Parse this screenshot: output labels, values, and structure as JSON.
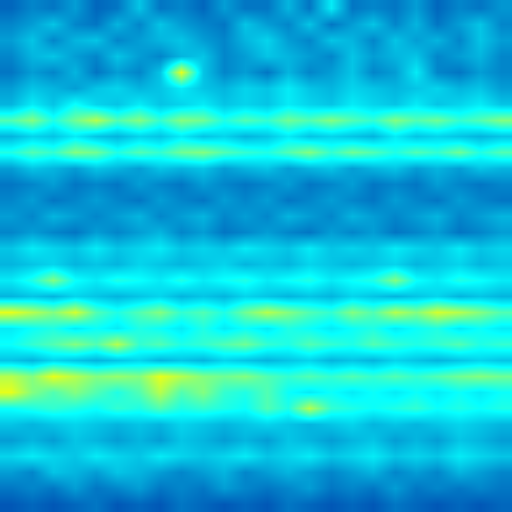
{
  "chart_data": {
    "type": "heatmap",
    "tick_labels": false,
    "xlim": [
      -0.5,
      23.5
    ],
    "ylim": [
      31.5,
      -0.5
    ],
    "zlim": [
      0,
      1
    ],
    "z": [
      [
        0.18,
        0.22,
        0.2,
        0.25,
        0.18,
        0.2,
        0.3,
        0.2,
        0.22,
        0.18,
        0.25,
        0.2,
        0.2,
        0.28,
        0.2,
        0.35,
        0.2,
        0.22,
        0.2,
        0.25,
        0.18,
        0.22,
        0.2,
        0.24
      ],
      [
        0.22,
        0.25,
        0.3,
        0.22,
        0.2,
        0.28,
        0.22,
        0.3,
        0.25,
        0.22,
        0.2,
        0.3,
        0.25,
        0.22,
        0.3,
        0.2,
        0.25,
        0.3,
        0.22,
        0.28,
        0.2,
        0.25,
        0.3,
        0.22
      ],
      [
        0.25,
        0.3,
        0.22,
        0.28,
        0.3,
        0.22,
        0.25,
        0.28,
        0.3,
        0.25,
        0.22,
        0.28,
        0.32,
        0.25,
        0.22,
        0.3,
        0.28,
        0.22,
        0.3,
        0.25,
        0.28,
        0.22,
        0.3,
        0.25
      ],
      [
        0.22,
        0.28,
        0.3,
        0.25,
        0.22,
        0.3,
        0.25,
        0.22,
        0.28,
        0.3,
        0.22,
        0.25,
        0.3,
        0.28,
        0.25,
        0.22,
        0.3,
        0.25,
        0.28,
        0.3,
        0.22,
        0.25,
        0.28,
        0.22
      ],
      [
        0.2,
        0.25,
        0.22,
        0.28,
        0.2,
        0.25,
        0.22,
        0.3,
        0.6,
        0.3,
        0.22,
        0.25,
        0.2,
        0.28,
        0.22,
        0.25,
        0.3,
        0.22,
        0.25,
        0.35,
        0.22,
        0.2,
        0.25,
        0.22
      ],
      [
        0.25,
        0.3,
        0.28,
        0.25,
        0.3,
        0.32,
        0.28,
        0.3,
        0.35,
        0.3,
        0.28,
        0.32,
        0.3,
        0.35,
        0.3,
        0.28,
        0.32,
        0.3,
        0.28,
        0.3,
        0.32,
        0.28,
        0.3,
        0.25
      ],
      [
        0.28,
        0.35,
        0.3,
        0.38,
        0.32,
        0.3,
        0.35,
        0.3,
        0.32,
        0.35,
        0.3,
        0.32,
        0.3,
        0.35,
        0.32,
        0.3,
        0.35,
        0.32,
        0.3,
        0.35,
        0.3,
        0.32,
        0.35,
        0.3
      ],
      [
        0.45,
        0.5,
        0.4,
        0.48,
        0.55,
        0.45,
        0.5,
        0.42,
        0.5,
        0.48,
        0.4,
        0.45,
        0.42,
        0.48,
        0.45,
        0.5,
        0.45,
        0.42,
        0.5,
        0.45,
        0.48,
        0.42,
        0.45,
        0.5
      ],
      [
        0.28,
        0.32,
        0.3,
        0.35,
        0.3,
        0.28,
        0.32,
        0.3,
        0.35,
        0.3,
        0.32,
        0.28,
        0.3,
        0.35,
        0.3,
        0.32,
        0.3,
        0.28,
        0.35,
        0.3,
        0.32,
        0.3,
        0.28,
        0.3
      ],
      [
        0.4,
        0.45,
        0.42,
        0.5,
        0.48,
        0.4,
        0.45,
        0.42,
        0.48,
        0.5,
        0.45,
        0.42,
        0.4,
        0.45,
        0.5,
        0.42,
        0.48,
        0.45,
        0.4,
        0.45,
        0.42,
        0.48,
        0.4,
        0.45
      ],
      [
        0.25,
        0.3,
        0.28,
        0.25,
        0.3,
        0.28,
        0.25,
        0.3,
        0.28,
        0.3,
        0.25,
        0.28,
        0.3,
        0.25,
        0.28,
        0.3,
        0.25,
        0.28,
        0.3,
        0.25,
        0.28,
        0.25,
        0.3,
        0.28
      ],
      [
        0.2,
        0.22,
        0.25,
        0.2,
        0.22,
        0.2,
        0.25,
        0.22,
        0.2,
        0.25,
        0.22,
        0.2,
        0.22,
        0.25,
        0.2,
        0.22,
        0.25,
        0.2,
        0.22,
        0.2,
        0.25,
        0.22,
        0.2,
        0.22
      ],
      [
        0.22,
        0.25,
        0.2,
        0.22,
        0.25,
        0.22,
        0.2,
        0.25,
        0.22,
        0.2,
        0.25,
        0.22,
        0.25,
        0.2,
        0.22,
        0.25,
        0.22,
        0.2,
        0.25,
        0.22,
        0.2,
        0.25,
        0.22,
        0.2
      ],
      [
        0.25,
        0.22,
        0.28,
        0.25,
        0.22,
        0.25,
        0.28,
        0.22,
        0.25,
        0.28,
        0.22,
        0.25,
        0.22,
        0.28,
        0.25,
        0.22,
        0.28,
        0.25,
        0.22,
        0.25,
        0.28,
        0.22,
        0.25,
        0.28
      ],
      [
        0.22,
        0.25,
        0.22,
        0.2,
        0.25,
        0.22,
        0.25,
        0.28,
        0.22,
        0.25,
        0.2,
        0.22,
        0.25,
        0.22,
        0.2,
        0.25,
        0.22,
        0.25,
        0.2,
        0.22,
        0.25,
        0.2,
        0.22,
        0.25
      ],
      [
        0.3,
        0.35,
        0.32,
        0.3,
        0.35,
        0.3,
        0.32,
        0.35,
        0.3,
        0.32,
        0.3,
        0.35,
        0.32,
        0.3,
        0.35,
        0.3,
        0.32,
        0.3,
        0.35,
        0.32,
        0.3,
        0.35,
        0.3,
        0.32
      ],
      [
        0.28,
        0.3,
        0.32,
        0.28,
        0.3,
        0.28,
        0.32,
        0.3,
        0.28,
        0.3,
        0.32,
        0.28,
        0.3,
        0.28,
        0.32,
        0.3,
        0.28,
        0.3,
        0.32,
        0.28,
        0.3,
        0.32,
        0.28,
        0.3
      ],
      [
        0.35,
        0.4,
        0.5,
        0.38,
        0.35,
        0.4,
        0.38,
        0.35,
        0.4,
        0.35,
        0.38,
        0.4,
        0.35,
        0.38,
        0.4,
        0.35,
        0.38,
        0.4,
        0.5,
        0.38,
        0.35,
        0.4,
        0.38,
        0.35
      ],
      [
        0.28,
        0.3,
        0.28,
        0.32,
        0.3,
        0.28,
        0.3,
        0.32,
        0.28,
        0.3,
        0.28,
        0.32,
        0.3,
        0.28,
        0.3,
        0.28,
        0.32,
        0.3,
        0.28,
        0.3,
        0.32,
        0.28,
        0.3,
        0.28
      ],
      [
        0.6,
        0.55,
        0.5,
        0.58,
        0.45,
        0.4,
        0.45,
        0.5,
        0.42,
        0.45,
        0.4,
        0.48,
        0.55,
        0.5,
        0.45,
        0.42,
        0.5,
        0.45,
        0.55,
        0.5,
        0.58,
        0.55,
        0.5,
        0.45
      ],
      [
        0.35,
        0.38,
        0.4,
        0.35,
        0.38,
        0.35,
        0.4,
        0.38,
        0.35,
        0.4,
        0.35,
        0.38,
        0.35,
        0.4,
        0.38,
        0.35,
        0.38,
        0.4,
        0.35,
        0.38,
        0.4,
        0.35,
        0.38,
        0.35
      ],
      [
        0.38,
        0.42,
        0.45,
        0.5,
        0.45,
        0.55,
        0.42,
        0.45,
        0.4,
        0.42,
        0.45,
        0.48,
        0.42,
        0.4,
        0.45,
        0.42,
        0.4,
        0.45,
        0.42,
        0.4,
        0.42,
        0.45,
        0.4,
        0.42
      ],
      [
        0.3,
        0.28,
        0.32,
        0.3,
        0.28,
        0.3,
        0.32,
        0.28,
        0.3,
        0.28,
        0.32,
        0.3,
        0.28,
        0.3,
        0.32,
        0.28,
        0.3,
        0.28,
        0.32,
        0.3,
        0.28,
        0.3,
        0.32,
        0.3
      ],
      [
        0.55,
        0.5,
        0.6,
        0.55,
        0.5,
        0.52,
        0.5,
        0.6,
        0.55,
        0.5,
        0.48,
        0.5,
        0.45,
        0.42,
        0.45,
        0.42,
        0.45,
        0.42,
        0.45,
        0.42,
        0.45,
        0.48,
        0.5,
        0.48
      ],
      [
        0.6,
        0.5,
        0.45,
        0.5,
        0.45,
        0.4,
        0.45,
        0.55,
        0.45,
        0.5,
        0.42,
        0.4,
        0.45,
        0.38,
        0.35,
        0.38,
        0.35,
        0.38,
        0.35,
        0.38,
        0.35,
        0.38,
        0.35,
        0.38
      ],
      [
        0.38,
        0.4,
        0.42,
        0.4,
        0.38,
        0.42,
        0.4,
        0.45,
        0.4,
        0.42,
        0.4,
        0.38,
        0.45,
        0.4,
        0.55,
        0.42,
        0.4,
        0.38,
        0.4,
        0.42,
        0.38,
        0.4,
        0.38,
        0.4
      ],
      [
        0.3,
        0.28,
        0.3,
        0.32,
        0.3,
        0.28,
        0.3,
        0.28,
        0.32,
        0.3,
        0.28,
        0.3,
        0.32,
        0.3,
        0.28,
        0.3,
        0.32,
        0.28,
        0.3,
        0.28,
        0.3,
        0.32,
        0.3,
        0.28
      ],
      [
        0.25,
        0.28,
        0.25,
        0.3,
        0.28,
        0.25,
        0.28,
        0.25,
        0.3,
        0.28,
        0.25,
        0.28,
        0.25,
        0.3,
        0.28,
        0.25,
        0.28,
        0.3,
        0.25,
        0.28,
        0.25,
        0.3,
        0.28,
        0.25
      ],
      [
        0.32,
        0.35,
        0.32,
        0.3,
        0.35,
        0.32,
        0.3,
        0.35,
        0.32,
        0.3,
        0.32,
        0.35,
        0.3,
        0.32,
        0.35,
        0.3,
        0.32,
        0.35,
        0.3,
        0.32,
        0.3,
        0.35,
        0.32,
        0.3
      ],
      [
        0.25,
        0.22,
        0.3,
        0.28,
        0.25,
        0.3,
        0.28,
        0.25,
        0.22,
        0.25,
        0.28,
        0.22,
        0.25,
        0.28,
        0.25,
        0.22,
        0.25,
        0.28,
        0.22,
        0.25,
        0.22,
        0.28,
        0.25,
        0.22
      ],
      [
        0.2,
        0.22,
        0.2,
        0.25,
        0.2,
        0.22,
        0.25,
        0.2,
        0.22,
        0.2,
        0.25,
        0.22,
        0.2,
        0.22,
        0.25,
        0.2,
        0.22,
        0.2,
        0.25,
        0.2,
        0.22,
        0.2,
        0.22,
        0.2
      ],
      [
        0.16,
        0.18,
        0.16,
        0.18,
        0.2,
        0.16,
        0.18,
        0.16,
        0.2,
        0.18,
        0.16,
        0.18,
        0.16,
        0.2,
        0.18,
        0.16,
        0.18,
        0.16,
        0.2,
        0.18,
        0.16,
        0.18,
        0.16,
        0.18
      ]
    ]
  }
}
